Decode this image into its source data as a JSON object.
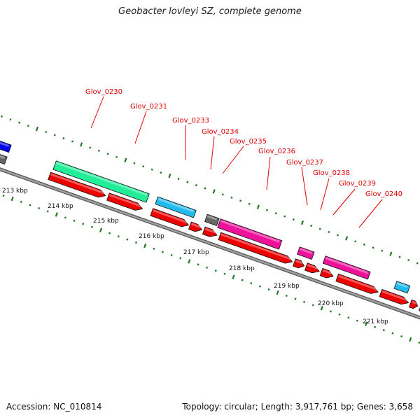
{
  "title": "Geobacter lovleyi SZ, complete genome",
  "footer": {
    "accession": "Accession: NC_010814",
    "summary": "Topology: circular; Length: 3,917,761 bp; Genes: 3,658"
  },
  "scale_labels": [
    "213 kbp",
    "214 kbp",
    "215 kbp",
    "216 kbp",
    "217 kbp",
    "218 kbp",
    "219 kbp",
    "220 kbp",
    "221 kbp"
  ],
  "gene_labels": [
    "Glov_0230",
    "Glov_0231",
    "Glov_0233",
    "Glov_0234",
    "Glov_0235",
    "Glov_0236",
    "Glov_0237",
    "Glov_0238",
    "Glov_0239",
    "Glov_0240"
  ],
  "colors": {
    "backbone": "#7a7a7a",
    "cds_forward": "#ee0000",
    "blue": "#0000ee",
    "green": "#22ee99",
    "cyan": "#22bbee",
    "magenta": "#ee1199",
    "grey": "#666666",
    "tick": "#227722",
    "label": "#e00000"
  }
}
